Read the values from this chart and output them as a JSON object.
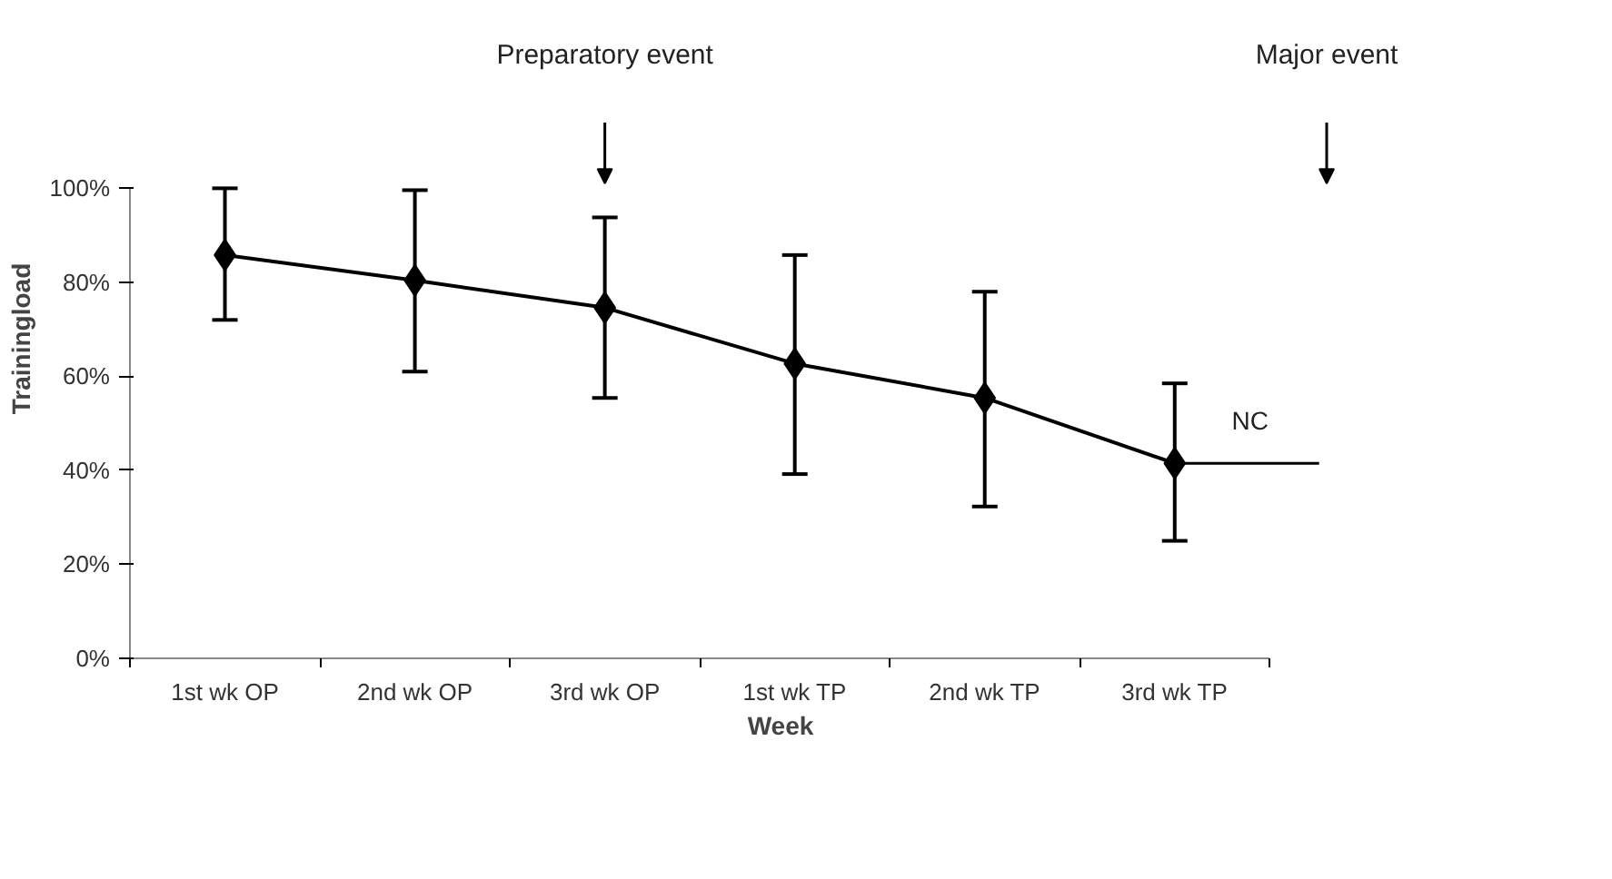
{
  "chart_data": {
    "type": "line",
    "xlabel": "Week",
    "ylabel": "Trainingload",
    "categories": [
      "1st wk OP",
      "2nd wk OP",
      "3rd wk OP",
      "1st wk TP",
      "2nd wk TP",
      "3rd wk TP"
    ],
    "series": [
      {
        "color": "#000000",
        "values": [
          85.8,
          80.4,
          74.6,
          62.7,
          55.4,
          41.5
        ],
        "errors": [
          [
            72,
            100
          ],
          [
            61,
            99.6
          ],
          [
            55.4,
            93.8
          ],
          [
            39.2,
            85.8
          ],
          [
            32.3,
            78
          ],
          [
            25,
            58.5
          ]
        ]
      }
    ],
    "ylim": [
      0,
      100
    ],
    "yticks": [
      {
        "value": 0,
        "label": "0%"
      },
      {
        "value": 20,
        "label": "20%"
      },
      {
        "value": 40,
        "label": "40%"
      },
      {
        "value": 60,
        "label": "60%"
      },
      {
        "value": 80,
        "label": "80%"
      },
      {
        "value": 100,
        "label": "100%"
      }
    ],
    "marker": "diamond",
    "line_style": "solid",
    "grid": false,
    "ref_lines": [
      {
        "axis": "y",
        "value": 41.5,
        "label": "NC",
        "color": "#000000"
      }
    ],
    "annotations": [
      "Preparatory event",
      "Major event"
    ]
  }
}
